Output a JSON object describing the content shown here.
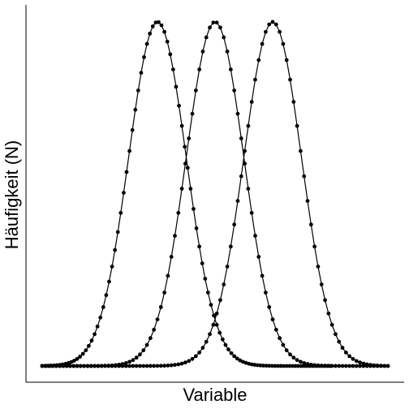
{
  "chart_data": {
    "type": "line",
    "xlabel": "Variable",
    "ylabel": "Häufigkeit (N)",
    "xlim": [
      -3,
      3
    ],
    "ylim": [
      0,
      1
    ],
    "x_ticks_shown": false,
    "y_ticks_shown": false,
    "grid": false,
    "legend": "none",
    "markers": true,
    "line_color": "#000000",
    "series": [
      {
        "mean": -1.0,
        "sd": 0.5,
        "peak": 1.0,
        "x_start": -3,
        "x_end": 2,
        "n_points": 100
      },
      {
        "mean": 0.0,
        "sd": 0.5,
        "peak": 1.0,
        "x_start": -3,
        "x_end": 3,
        "n_points": 100
      },
      {
        "mean": 1.0,
        "sd": 0.5,
        "peak": 1.0,
        "x_start": -3,
        "x_end": 3,
        "n_points": 100
      }
    ]
  }
}
